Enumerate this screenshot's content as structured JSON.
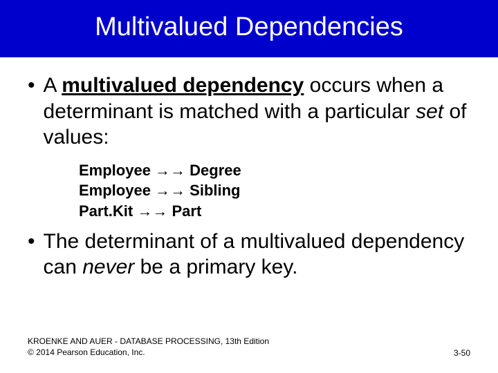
{
  "title": "Multivalued Dependencies",
  "bullet1": {
    "prefix": "A ",
    "term": "multivalued dependency",
    "rest1": " occurs when a determinant is matched with a particular ",
    "italic": "set",
    "rest2": " of values:"
  },
  "examples": {
    "line1_left": "Employee ",
    "line1_arrow": "→→",
    "line1_right": " Degree",
    "line2_left": "Employee ",
    "line2_arrow": "→→",
    "line2_right": " Sibling",
    "line3_left": "Part.Kit ",
    "line3_arrow": "→→",
    "line3_right": " Part"
  },
  "bullet2": {
    "prefix": "The determinant of a multivalued dependency can ",
    "italic": "never",
    "rest": " be a primary key."
  },
  "footer": {
    "line1": "KROENKE AND AUER - DATABASE PROCESSING, 13th Edition",
    "line2": "© 2014 Pearson Education, Inc.",
    "page": "3-50"
  },
  "colors": {
    "title_bg": "#0000cc",
    "title_text": "#ffffff",
    "body_text": "#000000",
    "background": "#ffffff"
  }
}
